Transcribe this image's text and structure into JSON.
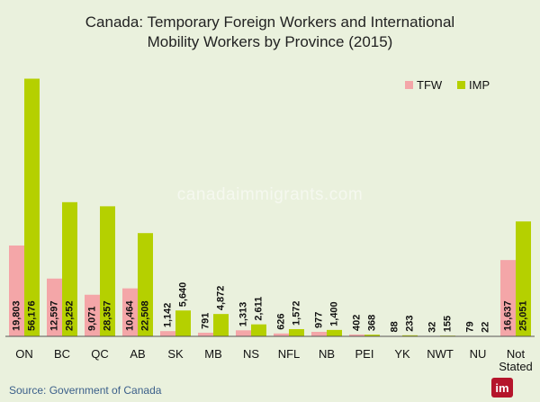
{
  "chart_data": {
    "type": "bar",
    "title_lines": [
      "Canada: Temporary Foreign Workers and International",
      "Mobility Workers by Province (2015)"
    ],
    "categories": [
      "ON",
      "BC",
      "QC",
      "AB",
      "SK",
      "MB",
      "NS",
      "NFL",
      "NB",
      "PEI",
      "YK",
      "NWT",
      "NU",
      "Not Stated"
    ],
    "series": [
      {
        "name": "TFW",
        "color": "#f4a6a8",
        "values": [
          19803,
          12597,
          9071,
          10464,
          1142,
          791,
          1313,
          626,
          977,
          402,
          88,
          32,
          79,
          16637
        ],
        "labels": [
          "19,803",
          "12,597",
          "9,071",
          "10,464",
          "1,142",
          "791",
          "1,313",
          "626",
          "977",
          "402",
          "88",
          "32",
          "79",
          "16,637"
        ]
      },
      {
        "name": "IMP",
        "color": "#b5d000",
        "values": [
          56176,
          29252,
          28357,
          22508,
          5640,
          4872,
          2611,
          1572,
          1400,
          368,
          233,
          155,
          22,
          25051
        ],
        "labels": [
          "56,176",
          "29,252",
          "28,357",
          "22,508",
          "5,640",
          "4,872",
          "2,611",
          "1,572",
          "1,400",
          "368",
          "233",
          "155",
          "22",
          "25,051"
        ]
      }
    ],
    "xlabel": "",
    "ylabel": "",
    "ylim": [
      0,
      60000
    ],
    "grid": false,
    "legend": "top-right"
  },
  "watermark": "canadaimmigrants.com",
  "source": "Source: Government of Canada",
  "logo": {
    "text": "im",
    "color": "#b5152b"
  }
}
